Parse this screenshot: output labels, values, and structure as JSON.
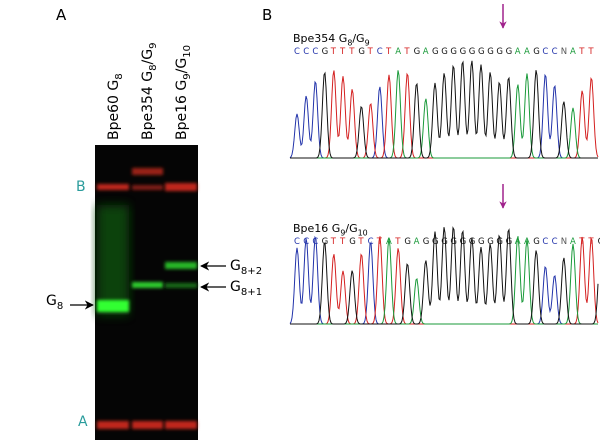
{
  "panels": {
    "a": "A",
    "b": "B"
  },
  "gel": {
    "lanes": [
      [
        "Bpe60  G",
        "8"
      ],
      [
        "Bpe354 G",
        "8",
        "/G",
        "9"
      ],
      [
        "Bpe16  G",
        "9",
        "/G",
        "10"
      ]
    ],
    "markers": {
      "top": "B",
      "bottom": "A"
    },
    "left_label": [
      "G",
      "8"
    ],
    "right_labels": [
      [
        "G",
        "8+2"
      ],
      [
        "G",
        "8+1"
      ]
    ]
  },
  "chromatograms": [
    {
      "title": [
        "Bpe354 G",
        "8",
        "/G",
        "9"
      ],
      "sequence": "CCCGTTTGTCTATGAGGGGGGGGGAAGCCNATT"
    },
    {
      "title": [
        "Bpe16 G",
        "9",
        "/G",
        "10"
      ],
      "sequence": "CCCGTTGTCTATGAGGGGGGGGGGAAGCCNATTG"
    }
  ]
}
